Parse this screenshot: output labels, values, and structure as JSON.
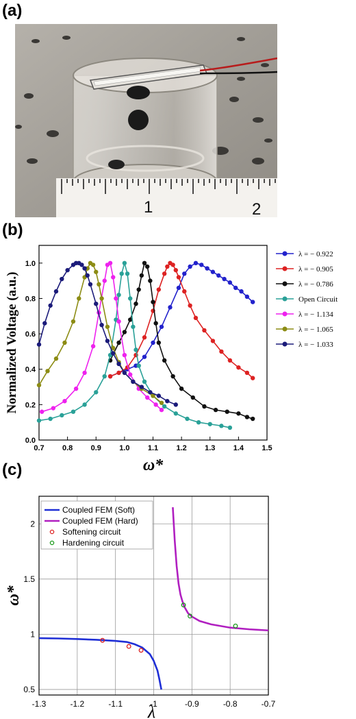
{
  "panels": {
    "a": "(a)",
    "b": "(b)",
    "c": "(c)"
  },
  "photo": {
    "ruler_labels": [
      "1",
      "2"
    ]
  },
  "chart_data": [
    {
      "type": "line",
      "panel": "(b)",
      "title": "",
      "xlabel": "ω*",
      "ylabel": "Normalized Voltage (a.u.)",
      "xlim": [
        0.7,
        1.5
      ],
      "ylim": [
        0.0,
        1.1
      ],
      "xticks": [
        "0.7",
        "0.8",
        "0.9",
        "1.0",
        "1.1",
        "1.2",
        "1.3",
        "1.4",
        "1.5"
      ],
      "yticks": [
        "0.0",
        "0.2",
        "0.4",
        "0.6",
        "0.8",
        "1.0"
      ],
      "legend_position": "right-outside",
      "grid": false,
      "series": [
        {
          "name": "λ = − 0.922",
          "color": "#2222cc",
          "x": [
            0.95,
            0.98,
            1.01,
            1.04,
            1.07,
            1.1,
            1.13,
            1.16,
            1.19,
            1.21,
            1.23,
            1.25,
            1.27,
            1.29,
            1.31,
            1.33,
            1.35,
            1.37,
            1.39,
            1.41,
            1.43,
            1.45
          ],
          "y": [
            0.36,
            0.38,
            0.4,
            0.42,
            0.47,
            0.55,
            0.64,
            0.75,
            0.86,
            0.94,
            0.98,
            1.0,
            0.99,
            0.97,
            0.95,
            0.93,
            0.91,
            0.89,
            0.86,
            0.84,
            0.81,
            0.78
          ]
        },
        {
          "name": "λ = − 0.905",
          "color": "#dd2222",
          "x": [
            0.95,
            0.98,
            1.01,
            1.04,
            1.07,
            1.1,
            1.12,
            1.14,
            1.15,
            1.16,
            1.17,
            1.18,
            1.19,
            1.21,
            1.23,
            1.25,
            1.28,
            1.31,
            1.34,
            1.37,
            1.4,
            1.43,
            1.45
          ],
          "y": [
            0.36,
            0.38,
            0.41,
            0.48,
            0.58,
            0.73,
            0.85,
            0.94,
            0.98,
            1.0,
            0.99,
            0.96,
            0.92,
            0.84,
            0.76,
            0.69,
            0.62,
            0.56,
            0.5,
            0.45,
            0.41,
            0.38,
            0.35
          ]
        },
        {
          "name": "λ = − 0.786",
          "color": "#111111",
          "x": [
            0.95,
            0.98,
            1.0,
            1.02,
            1.04,
            1.05,
            1.06,
            1.07,
            1.08,
            1.09,
            1.1,
            1.11,
            1.12,
            1.14,
            1.17,
            1.2,
            1.24,
            1.28,
            1.32,
            1.36,
            1.4,
            1.43,
            1.45
          ],
          "y": [
            0.45,
            0.55,
            0.61,
            0.68,
            0.77,
            0.85,
            0.93,
            1.0,
            0.98,
            0.9,
            0.78,
            0.66,
            0.55,
            0.45,
            0.36,
            0.29,
            0.24,
            0.19,
            0.17,
            0.16,
            0.15,
            0.13,
            0.12
          ]
        },
        {
          "name": "Open Circuit",
          "color": "#2aa198",
          "x": [
            0.7,
            0.74,
            0.78,
            0.82,
            0.86,
            0.9,
            0.93,
            0.95,
            0.97,
            0.98,
            0.99,
            1.0,
            1.01,
            1.02,
            1.03,
            1.04,
            1.05,
            1.07,
            1.1,
            1.14,
            1.18,
            1.22,
            1.26,
            1.3,
            1.34,
            1.37
          ],
          "y": [
            0.11,
            0.12,
            0.14,
            0.16,
            0.2,
            0.27,
            0.36,
            0.48,
            0.68,
            0.82,
            0.94,
            1.0,
            0.94,
            0.8,
            0.64,
            0.51,
            0.42,
            0.33,
            0.25,
            0.19,
            0.15,
            0.12,
            0.1,
            0.09,
            0.08,
            0.07
          ]
        },
        {
          "name": "λ = − 1.134",
          "color": "#ee22ee",
          "x": [
            0.71,
            0.75,
            0.79,
            0.83,
            0.86,
            0.89,
            0.91,
            0.93,
            0.94,
            0.95,
            0.96,
            0.97,
            0.98,
            1.0,
            1.02,
            1.05,
            1.08,
            1.11,
            1.13
          ],
          "y": [
            0.16,
            0.18,
            0.22,
            0.29,
            0.38,
            0.53,
            0.72,
            0.9,
            0.99,
            1.0,
            0.92,
            0.8,
            0.67,
            0.48,
            0.37,
            0.29,
            0.24,
            0.2,
            0.17
          ]
        },
        {
          "name": "λ = − 1.065",
          "color": "#8c8c14",
          "x": [
            0.7,
            0.73,
            0.76,
            0.79,
            0.82,
            0.84,
            0.86,
            0.87,
            0.88,
            0.89,
            0.9,
            0.91,
            0.92,
            0.94,
            0.96,
            0.98,
            1.0,
            1.03,
            1.06,
            1.1,
            1.13
          ],
          "y": [
            0.31,
            0.39,
            0.46,
            0.55,
            0.67,
            0.8,
            0.92,
            0.97,
            1.0,
            0.99,
            0.95,
            0.88,
            0.8,
            0.64,
            0.52,
            0.44,
            0.38,
            0.33,
            0.29,
            0.25,
            0.21
          ]
        },
        {
          "name": "λ = − 1.033",
          "color": "#1b1b7a",
          "x": [
            0.7,
            0.72,
            0.74,
            0.76,
            0.78,
            0.8,
            0.82,
            0.83,
            0.84,
            0.85,
            0.86,
            0.87,
            0.88,
            0.9,
            0.92,
            0.94,
            0.96,
            0.98,
            1.0,
            1.03,
            1.06,
            1.09,
            1.12,
            1.15,
            1.18
          ],
          "y": [
            0.54,
            0.66,
            0.76,
            0.84,
            0.91,
            0.96,
            0.99,
            1.0,
            1.0,
            0.99,
            0.97,
            0.93,
            0.88,
            0.77,
            0.65,
            0.56,
            0.49,
            0.43,
            0.38,
            0.33,
            0.3,
            0.27,
            0.25,
            0.22,
            0.2
          ]
        }
      ]
    },
    {
      "type": "line",
      "panel": "(c)",
      "title": "",
      "xlabel": "λ",
      "ylabel": "ω*",
      "xlim": [
        -1.3,
        -0.7
      ],
      "ylim": [
        0.45,
        2.25
      ],
      "xticks": [
        "-1.3",
        "-1.2",
        "-1.1",
        "-1",
        "-0.9",
        "-0.8",
        "-0.7"
      ],
      "yticks": [
        "0.5",
        "1",
        "1.5",
        "2"
      ],
      "xtick_values": [
        -1.3,
        -1.2,
        -1.1,
        -1.0,
        -0.9,
        -0.8,
        -0.7
      ],
      "ytick_values": [
        0.5,
        1.0,
        1.5,
        2.0
      ],
      "grid": true,
      "legend_position": "top-left",
      "series": [
        {
          "name": "Coupled FEM (Soft)",
          "kind": "line",
          "color": "#1f2fd6",
          "x": [
            -1.3,
            -1.25,
            -1.2,
            -1.15,
            -1.1,
            -1.07,
            -1.05,
            -1.03,
            -1.01,
            -1.0,
            -0.99,
            -0.985,
            -0.98
          ],
          "y": [
            0.965,
            0.962,
            0.957,
            0.95,
            0.94,
            0.93,
            0.91,
            0.88,
            0.82,
            0.76,
            0.67,
            0.59,
            0.5
          ]
        },
        {
          "name": "Coupled FEM (Hard)",
          "kind": "line",
          "color": "#b01fc0",
          "x": [
            -0.95,
            -0.945,
            -0.94,
            -0.935,
            -0.93,
            -0.925,
            -0.92,
            -0.91,
            -0.9,
            -0.88,
            -0.85,
            -0.8,
            -0.75,
            -0.7
          ],
          "y": [
            2.15,
            1.85,
            1.62,
            1.46,
            1.36,
            1.3,
            1.25,
            1.19,
            1.16,
            1.12,
            1.09,
            1.06,
            1.045,
            1.035
          ]
        },
        {
          "name": "Softening circuit",
          "kind": "marker",
          "color": "#dd2222",
          "x": [
            -1.134,
            -1.065,
            -1.033
          ],
          "y": [
            0.945,
            0.89,
            0.855
          ]
        },
        {
          "name": "Hardening circuit",
          "kind": "marker",
          "color": "#1a9a1a",
          "x": [
            -0.922,
            -0.905,
            -0.786
          ],
          "y": [
            1.265,
            1.165,
            1.075
          ]
        }
      ]
    }
  ]
}
